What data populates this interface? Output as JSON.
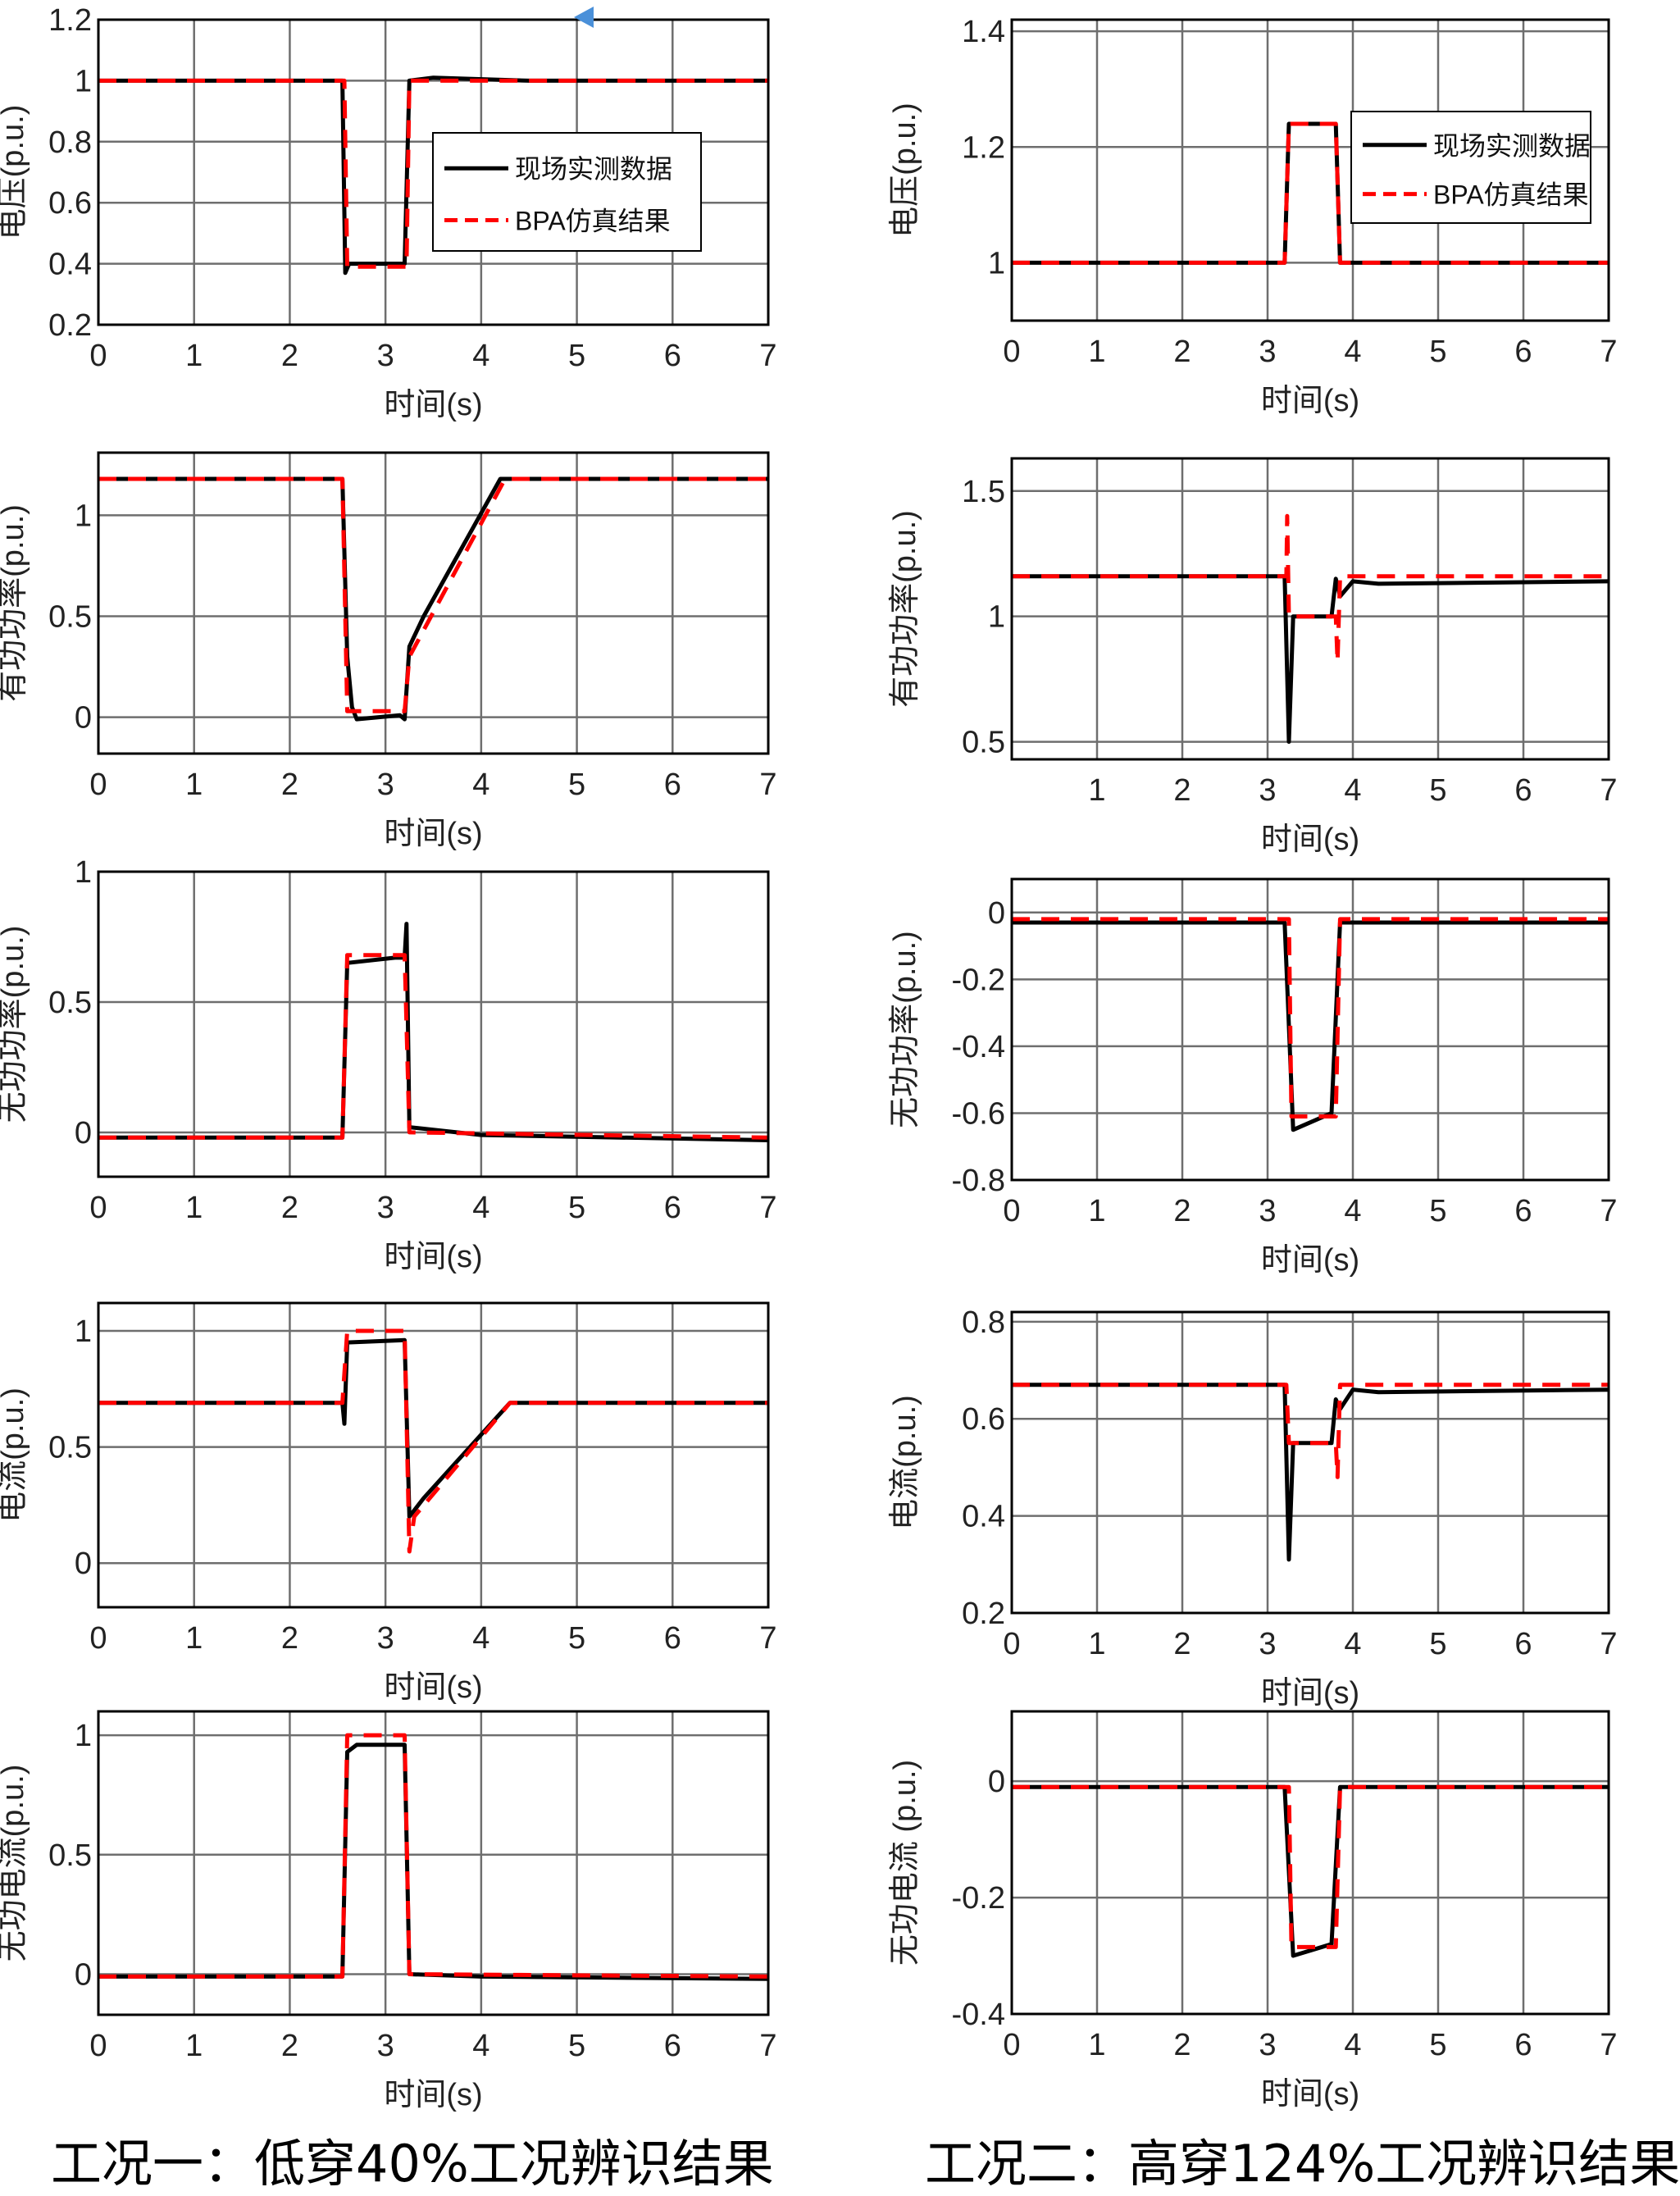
{
  "colors": {
    "measured": "#000000",
    "simulated": "#ff0000",
    "grid": "#6e6e6e",
    "marker": "#4a90d9"
  },
  "captions": {
    "left": "工况一：低穿40%工况辨识结果",
    "right": "工况二：高穿124%工况辨识结果"
  },
  "chart_data": [
    {
      "type": "line",
      "id": "L1",
      "xlabel": "时间(s)",
      "ylabel": "电压(p.u.)",
      "xlim": [
        0,
        7
      ],
      "ylim": [
        0.2,
        1.2
      ],
      "xticks": [
        0,
        1,
        2,
        3,
        4,
        5,
        6,
        7
      ],
      "yticks": [
        0.2,
        0.4,
        0.6,
        0.8,
        1,
        1.2
      ],
      "grid": true,
      "legend": {
        "placement": "center-right",
        "entries": [
          "现场实测数据",
          "BPA仿真结果"
        ]
      },
      "series": [
        {
          "name": "现场实测数据",
          "x": [
            0,
            2.55,
            2.58,
            2.62,
            3.2,
            3.25,
            3.5,
            4.5,
            7
          ],
          "y": [
            1,
            1,
            0.37,
            0.4,
            0.4,
            1.0,
            1.01,
            1.0,
            1
          ]
        },
        {
          "name": "BPA仿真结果",
          "x": [
            0,
            2.57,
            2.6,
            3.22,
            3.25,
            7
          ],
          "y": [
            1,
            1,
            0.39,
            0.39,
            1,
            1
          ]
        }
      ]
    },
    {
      "type": "line",
      "id": "L2",
      "xlabel": "时间(s)",
      "ylabel": "有功功率(p.u.)",
      "xlim": [
        0,
        7
      ],
      "ylim": [
        -0.18,
        1.31
      ],
      "xticks": [
        0,
        1,
        2,
        3,
        4,
        5,
        6,
        7
      ],
      "yticks": [
        0,
        0.5,
        1
      ],
      "grid": true,
      "series": [
        {
          "name": "现场实测数据",
          "x": [
            0,
            2.55,
            2.6,
            2.65,
            2.7,
            3.15,
            3.2,
            3.25,
            3.4,
            4.2,
            7
          ],
          "y": [
            1.18,
            1.18,
            0.3,
            0.05,
            -0.01,
            0.01,
            -0.01,
            0.35,
            0.5,
            1.18,
            1.18
          ]
        },
        {
          "name": "BPA仿真结果",
          "x": [
            0,
            2.55,
            2.6,
            3.2,
            3.25,
            4.25,
            7
          ],
          "y": [
            1.18,
            1.18,
            0.03,
            0.03,
            0.3,
            1.18,
            1.18
          ]
        }
      ]
    },
    {
      "type": "line",
      "id": "L3",
      "xlabel": "时间(s)",
      "ylabel": "无功功率(p.u.)",
      "xlim": [
        0,
        7
      ],
      "ylim": [
        -0.17,
        1.0
      ],
      "xticks": [
        0,
        1,
        2,
        3,
        4,
        5,
        6,
        7
      ],
      "yticks": [
        0,
        0.5,
        1
      ],
      "grid": true,
      "series": [
        {
          "name": "现场实测数据",
          "x": [
            0,
            2.55,
            2.6,
            3.1,
            3.2,
            3.22,
            3.25,
            4,
            7
          ],
          "y": [
            -0.02,
            -0.02,
            0.65,
            0.67,
            0.67,
            0.8,
            0.02,
            -0.01,
            -0.03
          ]
        },
        {
          "name": "BPA仿真结果",
          "x": [
            0,
            2.55,
            2.6,
            3.2,
            3.25,
            7
          ],
          "y": [
            -0.02,
            -0.02,
            0.68,
            0.68,
            0,
            -0.02
          ]
        }
      ]
    },
    {
      "type": "line",
      "id": "L4",
      "xlabel": "时间(s)",
      "ylabel": "电流(p.u.)",
      "xlim": [
        0,
        7
      ],
      "ylim": [
        -0.19,
        1.12
      ],
      "xticks": [
        0,
        1,
        2,
        3,
        4,
        5,
        6,
        7
      ],
      "yticks": [
        0,
        0.5,
        1
      ],
      "grid": true,
      "series": [
        {
          "name": "现场实测数据",
          "x": [
            0,
            2.55,
            2.57,
            2.6,
            3.2,
            3.25,
            3.4,
            4.3,
            7
          ],
          "y": [
            0.69,
            0.69,
            0.6,
            0.95,
            0.96,
            0.2,
            0.28,
            0.69,
            0.69
          ]
        },
        {
          "name": "BPA仿真结果",
          "x": [
            0,
            2.55,
            2.6,
            3.2,
            3.25,
            3.3,
            4.3,
            7
          ],
          "y": [
            0.69,
            0.69,
            1.0,
            1.0,
            0.05,
            0.2,
            0.69,
            0.69
          ]
        }
      ]
    },
    {
      "type": "line",
      "id": "L5",
      "xlabel": "时间(s)",
      "ylabel": "无功电流(p.u.)",
      "xlim": [
        0,
        7
      ],
      "ylim": [
        -0.17,
        1.1
      ],
      "xticks": [
        0,
        1,
        2,
        3,
        4,
        5,
        6,
        7
      ],
      "yticks": [
        0,
        0.5,
        1
      ],
      "grid": true,
      "series": [
        {
          "name": "现场实测数据",
          "x": [
            0,
            2.55,
            2.6,
            2.7,
            3.2,
            3.25,
            4,
            7
          ],
          "y": [
            -0.01,
            -0.01,
            0.93,
            0.96,
            0.96,
            0.0,
            -0.01,
            -0.02
          ]
        },
        {
          "name": "BPA仿真结果",
          "x": [
            0,
            2.55,
            2.6,
            3.2,
            3.25,
            7
          ],
          "y": [
            -0.01,
            -0.01,
            1.0,
            1.0,
            0,
            -0.01
          ]
        }
      ]
    },
    {
      "type": "line",
      "id": "R1",
      "xlabel": "时间(s)",
      "ylabel": "电压(p.u.)",
      "xlim": [
        0,
        7
      ],
      "ylim": [
        0.9,
        1.42
      ],
      "xticks": [
        0,
        1,
        2,
        3,
        4,
        5,
        6,
        7
      ],
      "yticks": [
        1,
        1.2,
        1.4
      ],
      "grid": true,
      "legend": {
        "placement": "top-right",
        "entries": [
          "现场实测数据",
          "BPA仿真结果"
        ]
      },
      "series": [
        {
          "name": "现场实测数据",
          "x": [
            0,
            3.2,
            3.25,
            3.8,
            3.85,
            7
          ],
          "y": [
            1,
            1,
            1.24,
            1.24,
            1,
            1
          ]
        },
        {
          "name": "BPA仿真结果",
          "x": [
            0,
            3.2,
            3.25,
            3.8,
            3.85,
            7
          ],
          "y": [
            1,
            1,
            1.24,
            1.24,
            1,
            1
          ]
        }
      ]
    },
    {
      "type": "line",
      "id": "R2",
      "xlabel": "时间(s)",
      "ylabel": "有功功率(p.u.)",
      "xlim": [
        0,
        7
      ],
      "ylim": [
        0.43,
        1.63
      ],
      "xticks": [
        1,
        2,
        3,
        4,
        5,
        6,
        7
      ],
      "yticks": [
        0.5,
        1,
        1.5
      ],
      "grid": true,
      "series": [
        {
          "name": "现场实测数据",
          "x": [
            0,
            3.2,
            3.25,
            3.3,
            3.75,
            3.8,
            3.85,
            4,
            4.3,
            7
          ],
          "y": [
            1.16,
            1.16,
            0.5,
            1.0,
            1.0,
            1.15,
            1.08,
            1.14,
            1.13,
            1.14
          ]
        },
        {
          "name": "BPA仿真结果",
          "x": [
            0,
            3.22,
            3.23,
            3.25,
            3.8,
            3.82,
            3.85,
            7
          ],
          "y": [
            1.16,
            1.16,
            1.4,
            1.0,
            1.0,
            0.82,
            1.16,
            1.16
          ]
        }
      ]
    },
    {
      "type": "line",
      "id": "R3",
      "xlabel": "时间(s)",
      "ylabel": "无功功率(p.u.)",
      "xlim": [
        0,
        7
      ],
      "ylim": [
        -0.8,
        0.1
      ],
      "xticks": [
        0,
        1,
        2,
        3,
        4,
        5,
        6,
        7
      ],
      "yticks": [
        0,
        -0.2,
        -0.4,
        -0.6,
        -0.8
      ],
      "grid": true,
      "series": [
        {
          "name": "现场实测数据",
          "x": [
            0,
            3.2,
            3.3,
            3.75,
            3.85,
            7
          ],
          "y": [
            -0.03,
            -0.03,
            -0.65,
            -0.6,
            -0.03,
            -0.03
          ]
        },
        {
          "name": "BPA仿真结果",
          "x": [
            0,
            3.25,
            3.28,
            3.8,
            3.85,
            7
          ],
          "y": [
            -0.02,
            -0.02,
            -0.61,
            -0.61,
            -0.02,
            -0.02
          ]
        }
      ]
    },
    {
      "type": "line",
      "id": "R4",
      "xlabel": "时间(s)",
      "ylabel": "电流(p.u.)",
      "xlim": [
        0,
        7
      ],
      "ylim": [
        0.2,
        0.82
      ],
      "xticks": [
        0,
        1,
        2,
        3,
        4,
        5,
        6,
        7
      ],
      "yticks": [
        0.2,
        0.4,
        0.6,
        0.8
      ],
      "grid": true,
      "series": [
        {
          "name": "现场实测数据",
          "x": [
            0,
            3.2,
            3.25,
            3.3,
            3.75,
            3.8,
            3.85,
            4,
            4.3,
            7
          ],
          "y": [
            0.67,
            0.67,
            0.31,
            0.55,
            0.55,
            0.64,
            0.62,
            0.66,
            0.655,
            0.66
          ]
        },
        {
          "name": "BPA仿真结果",
          "x": [
            0,
            3.22,
            3.25,
            3.8,
            3.82,
            3.85,
            7
          ],
          "y": [
            0.67,
            0.67,
            0.55,
            0.55,
            0.48,
            0.67,
            0.67
          ]
        }
      ]
    },
    {
      "type": "line",
      "id": "R5",
      "xlabel": "时间(s)",
      "ylabel": "无功电流 (p.u.)",
      "xlim": [
        0,
        7
      ],
      "ylim": [
        -0.4,
        0.12
      ],
      "xticks": [
        0,
        1,
        2,
        3,
        4,
        5,
        6,
        7
      ],
      "yticks": [
        0,
        -0.2,
        -0.4
      ],
      "grid": true,
      "series": [
        {
          "name": "现场实测数据",
          "x": [
            0,
            3.2,
            3.3,
            3.75,
            3.85,
            7
          ],
          "y": [
            -0.01,
            -0.01,
            -0.3,
            -0.28,
            -0.01,
            -0.01
          ]
        },
        {
          "name": "BPA仿真结果",
          "x": [
            0,
            3.25,
            3.28,
            3.8,
            3.85,
            7
          ],
          "y": [
            -0.01,
            -0.01,
            -0.285,
            -0.285,
            -0.01,
            -0.01
          ]
        }
      ]
    }
  ]
}
